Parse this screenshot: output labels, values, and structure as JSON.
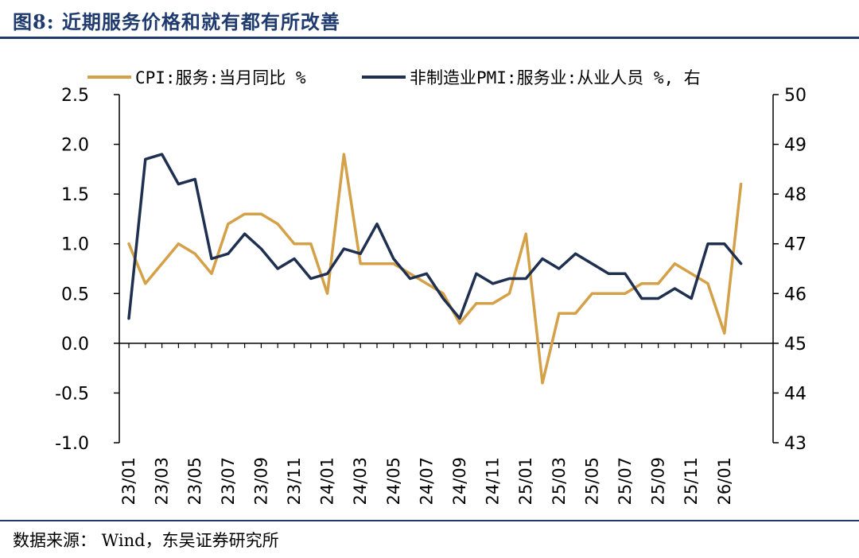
{
  "header": {
    "title": "图8:  近期服务价格和就有都有所改善"
  },
  "footer": {
    "source": "数据来源： Wind，东吴证券研究所"
  },
  "colors": {
    "cpi": "#D4A048",
    "pmi": "#1F2F50",
    "brand": "#1f3a6e"
  },
  "chart_data": {
    "type": "line",
    "x": [
      "23/01",
      "23/02",
      "23/03",
      "23/04",
      "23/05",
      "23/06",
      "23/07",
      "23/08",
      "23/09",
      "23/10",
      "23/11",
      "23/12",
      "24/01",
      "24/02",
      "24/03",
      "24/04",
      "24/05",
      "24/06",
      "24/07",
      "24/08",
      "24/09",
      "24/10",
      "24/11",
      "24/12",
      "25/01",
      "25/02",
      "25/03",
      "25/04",
      "25/05",
      "25/06",
      "25/07",
      "25/08",
      "25/09",
      "25/10",
      "25/11",
      "25/12",
      "26/01",
      "26/02"
    ],
    "x_tick_labels": [
      "23/01",
      "23/03",
      "23/05",
      "23/07",
      "23/09",
      "23/11",
      "24/01",
      "24/03",
      "24/05",
      "24/07",
      "24/09",
      "24/11",
      "25/01",
      "25/03",
      "25/05",
      "25/07",
      "25/09",
      "25/11",
      "26/01"
    ],
    "series": [
      {
        "name": "CPI:服务:当月同比 %",
        "axis": "left",
        "values": [
          1.0,
          0.6,
          0.8,
          1.0,
          0.9,
          0.7,
          1.2,
          1.3,
          1.3,
          1.2,
          1.0,
          1.0,
          0.5,
          1.9,
          0.8,
          0.8,
          0.8,
          0.7,
          0.6,
          0.5,
          0.2,
          0.4,
          0.4,
          0.5,
          1.1,
          -0.4,
          0.3,
          0.3,
          0.5,
          0.5,
          0.5,
          0.6,
          0.6,
          0.8,
          0.7,
          0.6,
          0.1,
          1.6
        ]
      },
      {
        "name": "非制造业PMI:服务业:从业人员 %, 右",
        "axis": "right",
        "values": [
          45.5,
          48.7,
          48.8,
          48.2,
          48.3,
          46.7,
          46.8,
          47.2,
          46.9,
          46.5,
          46.7,
          46.3,
          46.4,
          46.9,
          46.8,
          47.4,
          46.7,
          46.3,
          46.4,
          45.9,
          45.5,
          46.4,
          46.2,
          46.3,
          46.3,
          46.7,
          46.5,
          46.8,
          46.6,
          46.4,
          46.4,
          45.9,
          45.9,
          46.1,
          45.9,
          47.0,
          47.0,
          46.6
        ]
      }
    ],
    "y_left": {
      "lim": [
        -1.0,
        2.5
      ],
      "ticks": [
        "2.5",
        "2.0",
        "1.5",
        "1.0",
        "0.5",
        "0.0",
        "-0.5",
        "-1.0"
      ],
      "tick_values": [
        2.5,
        2.0,
        1.5,
        1.0,
        0.5,
        0.0,
        -0.5,
        -1.0
      ]
    },
    "y_right": {
      "lim": [
        43,
        50
      ],
      "ticks": [
        "50",
        "49",
        "48",
        "47",
        "46",
        "45",
        "44",
        "43"
      ],
      "tick_values": [
        50,
        49,
        48,
        47,
        46,
        45,
        44,
        43
      ]
    },
    "legend": {
      "placement": "top",
      "entries": [
        "CPI:服务:当月同比 %",
        "非制造业PMI:服务业:从业人员 %, 右"
      ]
    },
    "grid": false
  }
}
